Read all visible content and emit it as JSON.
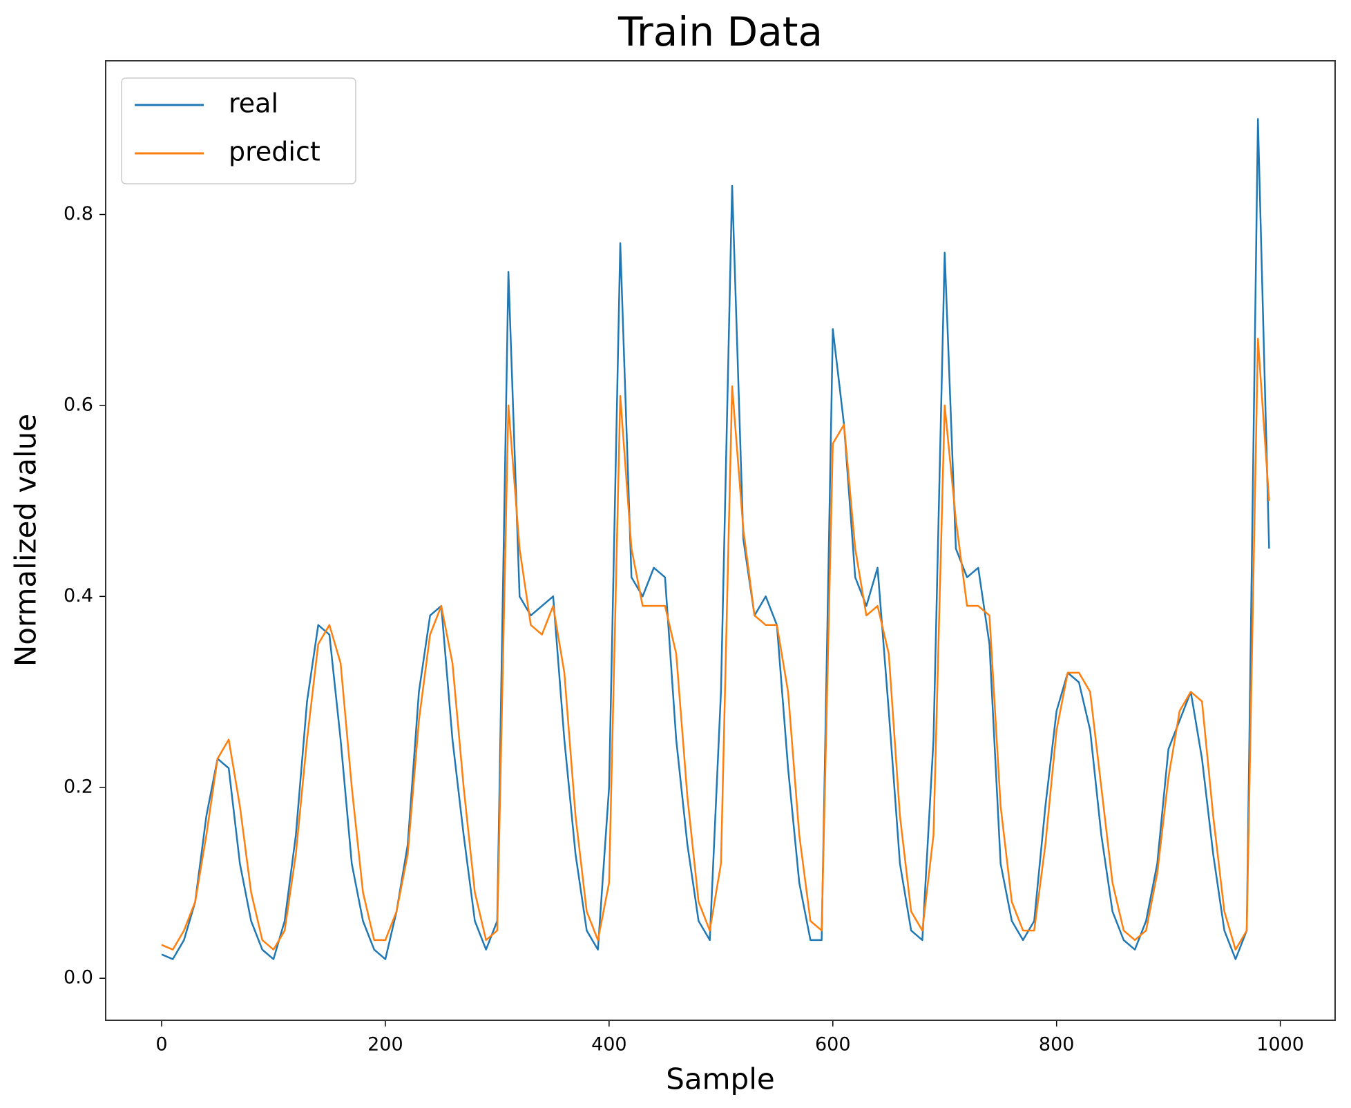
{
  "chart_data": {
    "type": "line",
    "title": "Train Data",
    "x_label": "Sample",
    "y_label": "Normalized value",
    "x": [
      0,
      10,
      20,
      30,
      40,
      50,
      60,
      70,
      80,
      90,
      100,
      110,
      120,
      130,
      140,
      150,
      160,
      170,
      180,
      190,
      200,
      210,
      220,
      230,
      240,
      250,
      260,
      270,
      280,
      290,
      300,
      310,
      320,
      330,
      340,
      350,
      360,
      370,
      380,
      390,
      400,
      410,
      420,
      430,
      440,
      450,
      460,
      470,
      480,
      490,
      500,
      510,
      520,
      530,
      540,
      550,
      560,
      570,
      580,
      590,
      600,
      610,
      620,
      630,
      640,
      650,
      660,
      670,
      680,
      690,
      700,
      710,
      720,
      730,
      740,
      750,
      760,
      770,
      780,
      790,
      800,
      810,
      820,
      830,
      840,
      850,
      860,
      870,
      880,
      890,
      900,
      910,
      920,
      930,
      940,
      950,
      960,
      970,
      980,
      990
    ],
    "series": [
      {
        "name": "real",
        "color": "#1f77b4",
        "values": [
          0.025,
          0.02,
          0.04,
          0.08,
          0.17,
          0.23,
          0.22,
          0.12,
          0.06,
          0.03,
          0.02,
          0.06,
          0.15,
          0.29,
          0.37,
          0.36,
          0.25,
          0.12,
          0.06,
          0.03,
          0.02,
          0.07,
          0.14,
          0.3,
          0.38,
          0.39,
          0.25,
          0.15,
          0.06,
          0.03,
          0.06,
          0.74,
          0.4,
          0.38,
          0.39,
          0.4,
          0.25,
          0.13,
          0.05,
          0.03,
          0.2,
          0.77,
          0.42,
          0.4,
          0.43,
          0.42,
          0.25,
          0.14,
          0.06,
          0.04,
          0.3,
          0.83,
          0.46,
          0.38,
          0.4,
          0.37,
          0.22,
          0.1,
          0.04,
          0.04,
          0.68,
          0.58,
          0.42,
          0.39,
          0.43,
          0.28,
          0.12,
          0.05,
          0.04,
          0.25,
          0.76,
          0.45,
          0.42,
          0.43,
          0.35,
          0.12,
          0.06,
          0.04,
          0.06,
          0.18,
          0.28,
          0.32,
          0.31,
          0.26,
          0.15,
          0.07,
          0.04,
          0.03,
          0.06,
          0.12,
          0.24,
          0.27,
          0.3,
          0.23,
          0.13,
          0.05,
          0.02,
          0.05,
          0.9,
          0.45
        ]
      },
      {
        "name": "predict",
        "color": "#ff7f0e",
        "values": [
          0.035,
          0.03,
          0.05,
          0.08,
          0.15,
          0.23,
          0.25,
          0.18,
          0.09,
          0.04,
          0.03,
          0.05,
          0.13,
          0.25,
          0.35,
          0.37,
          0.33,
          0.2,
          0.09,
          0.04,
          0.04,
          0.07,
          0.13,
          0.27,
          0.36,
          0.39,
          0.33,
          0.2,
          0.09,
          0.04,
          0.05,
          0.6,
          0.45,
          0.37,
          0.36,
          0.39,
          0.32,
          0.17,
          0.07,
          0.04,
          0.1,
          0.61,
          0.45,
          0.39,
          0.39,
          0.39,
          0.34,
          0.19,
          0.08,
          0.05,
          0.12,
          0.62,
          0.47,
          0.38,
          0.37,
          0.37,
          0.3,
          0.15,
          0.06,
          0.05,
          0.56,
          0.58,
          0.45,
          0.38,
          0.39,
          0.34,
          0.17,
          0.07,
          0.05,
          0.15,
          0.6,
          0.48,
          0.39,
          0.39,
          0.38,
          0.18,
          0.08,
          0.05,
          0.05,
          0.14,
          0.26,
          0.32,
          0.32,
          0.3,
          0.2,
          0.1,
          0.05,
          0.04,
          0.05,
          0.11,
          0.21,
          0.28,
          0.3,
          0.29,
          0.17,
          0.07,
          0.03,
          0.05,
          0.67,
          0.5
        ]
      }
    ],
    "xlim": [
      -50,
      1049
    ],
    "xticks": [
      0,
      200,
      400,
      600,
      800,
      1000
    ],
    "ylim": [
      -0.044,
      0.961
    ],
    "yticks": [
      {
        "value": 0,
        "label": "0.0"
      },
      0.2,
      0.4,
      0.6,
      0.8
    ],
    "legend": "upper left"
  }
}
